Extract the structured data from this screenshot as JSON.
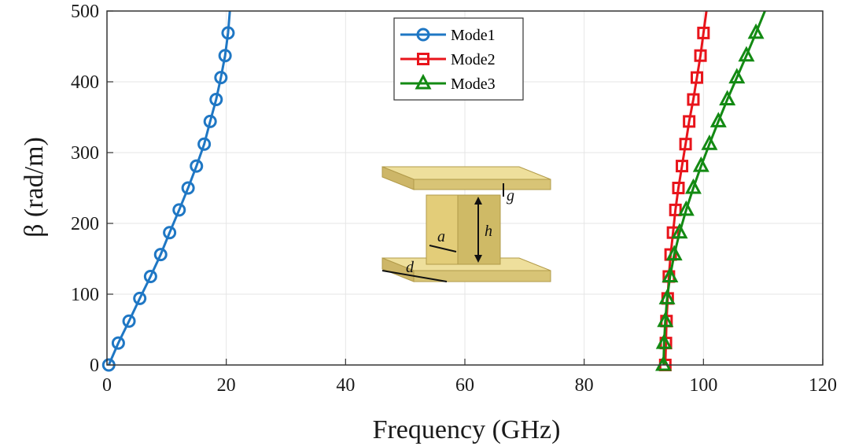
{
  "chart_data": {
    "type": "line",
    "title": "",
    "xlabel": "Frequency (GHz)",
    "ylabel": "β (rad/m)",
    "xlim": [
      0,
      120
    ],
    "ylim": [
      0,
      500
    ],
    "xticks": [
      0,
      20,
      40,
      60,
      80,
      100,
      120
    ],
    "yticks": [
      0,
      100,
      200,
      300,
      400,
      500
    ],
    "grid": true,
    "legend_position": "top-center",
    "series": [
      {
        "name": "Mode1",
        "color": "#1f77c4",
        "marker": "circle",
        "points": [
          {
            "x": 0.3,
            "y": 0
          },
          {
            "x": 1.9,
            "y": 31
          },
          {
            "x": 3.7,
            "y": 62
          },
          {
            "x": 5.5,
            "y": 94
          },
          {
            "x": 7.3,
            "y": 125
          },
          {
            "x": 9.0,
            "y": 156
          },
          {
            "x": 10.5,
            "y": 187
          },
          {
            "x": 12.1,
            "y": 219
          },
          {
            "x": 13.6,
            "y": 250
          },
          {
            "x": 15.0,
            "y": 281
          },
          {
            "x": 16.3,
            "y": 312
          },
          {
            "x": 17.3,
            "y": 344
          },
          {
            "x": 18.3,
            "y": 375
          },
          {
            "x": 19.1,
            "y": 406
          },
          {
            "x": 19.8,
            "y": 437
          },
          {
            "x": 20.3,
            "y": 469
          },
          {
            "x": 20.6,
            "y": 500
          }
        ],
        "marker_every_except_last": true
      },
      {
        "name": "Mode2",
        "color": "#e8141b",
        "marker": "square",
        "points": [
          {
            "x": 93.6,
            "y": 0
          },
          {
            "x": 93.7,
            "y": 31
          },
          {
            "x": 93.8,
            "y": 62
          },
          {
            "x": 94.0,
            "y": 94
          },
          {
            "x": 94.2,
            "y": 125
          },
          {
            "x": 94.5,
            "y": 156
          },
          {
            "x": 94.9,
            "y": 187
          },
          {
            "x": 95.3,
            "y": 219
          },
          {
            "x": 95.8,
            "y": 250
          },
          {
            "x": 96.4,
            "y": 281
          },
          {
            "x": 97.0,
            "y": 312
          },
          {
            "x": 97.6,
            "y": 344
          },
          {
            "x": 98.3,
            "y": 375
          },
          {
            "x": 98.9,
            "y": 406
          },
          {
            "x": 99.5,
            "y": 437
          },
          {
            "x": 100.0,
            "y": 469
          },
          {
            "x": 100.5,
            "y": 500
          }
        ],
        "marker_every_except_last": true
      },
      {
        "name": "Mode3",
        "color": "#138a13",
        "marker": "triangle",
        "points": [
          {
            "x": 93.3,
            "y": 0
          },
          {
            "x": 93.4,
            "y": 31
          },
          {
            "x": 93.6,
            "y": 62
          },
          {
            "x": 93.9,
            "y": 94
          },
          {
            "x": 94.4,
            "y": 125
          },
          {
            "x": 95.1,
            "y": 156
          },
          {
            "x": 96.0,
            "y": 187
          },
          {
            "x": 97.1,
            "y": 219
          },
          {
            "x": 98.3,
            "y": 250
          },
          {
            "x": 99.6,
            "y": 281
          },
          {
            "x": 101.0,
            "y": 312
          },
          {
            "x": 102.5,
            "y": 344
          },
          {
            "x": 104.0,
            "y": 375
          },
          {
            "x": 105.6,
            "y": 406
          },
          {
            "x": 107.2,
            "y": 437
          },
          {
            "x": 108.8,
            "y": 469
          },
          {
            "x": 110.3,
            "y": 500
          }
        ],
        "marker_every_except_last": true
      }
    ],
    "inset": {
      "description_labels": [
        "g",
        "h",
        "a",
        "d"
      ],
      "color": "#dcc878"
    }
  }
}
